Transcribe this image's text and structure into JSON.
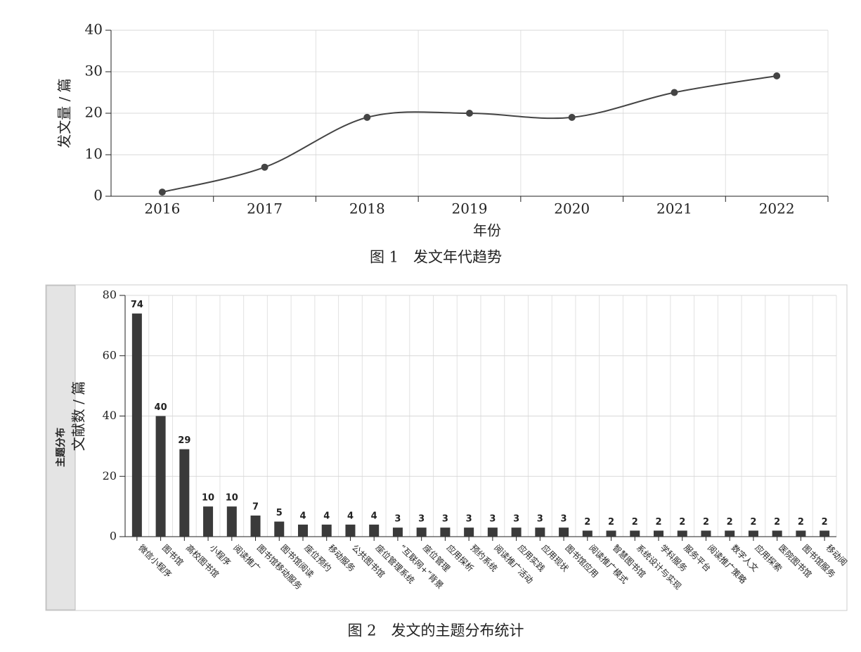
{
  "chart_data": [
    {
      "type": "line",
      "caption": "图 1　发文年代趋势",
      "x_label": "年份",
      "y_label": "发文量 / 篇",
      "categories": [
        "2016",
        "2017",
        "2018",
        "2019",
        "2020",
        "2021",
        "2022"
      ],
      "values": [
        1,
        7,
        19,
        20,
        19,
        25,
        29
      ],
      "color": "#444444",
      "ylim": [
        0,
        40
      ],
      "yticks": [
        0,
        10,
        20,
        30,
        40
      ],
      "grid": true
    },
    {
      "type": "bar",
      "caption": "图 2　发文的主题分布统计",
      "panel_label": "主题分布",
      "y_label": "文献数 / 篇",
      "categories": [
        "微信小程序",
        "图书馆",
        "高校图书馆",
        "小程序",
        "阅读推广",
        "图书馆移动服务",
        "图书馆阅读",
        "座位预约",
        "移动服务",
        "公共图书馆",
        "座位管理系统",
        "“互联网+”背景",
        "座位管理",
        "应用探析",
        "预约系统",
        "阅读推广活动",
        "应用实践",
        "应用现状",
        "图书馆应用",
        "阅读推广模式",
        "智慧图书馆",
        "系统设计与实现",
        "学科服务",
        "服务平台",
        "阅读推广策略",
        "数字人文",
        "应用探索",
        "医院图书馆",
        "图书馆服务",
        "移动阅"
      ],
      "values": [
        74,
        40,
        29,
        10,
        10,
        7,
        5,
        4,
        4,
        4,
        4,
        3,
        3,
        3,
        3,
        3,
        3,
        3,
        3,
        2,
        2,
        2,
        2,
        2,
        2,
        2,
        2,
        2,
        2,
        2
      ],
      "color": "#3a3a3a",
      "ylim": [
        0,
        80
      ],
      "yticks": [
        0,
        20,
        40,
        60,
        80
      ],
      "grid": true
    }
  ]
}
